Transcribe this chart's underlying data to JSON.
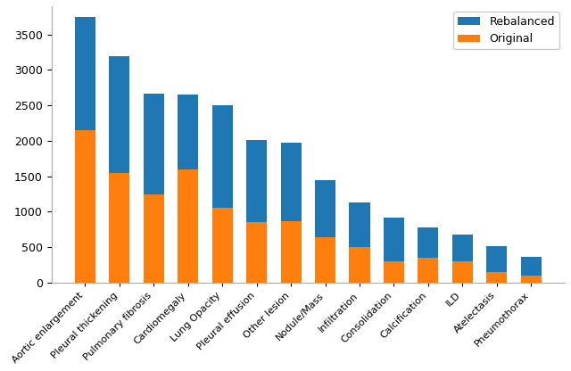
{
  "categories": [
    "Aortic enlargement",
    "Pleural thickening",
    "Pulmonary fibrosis",
    "Cardiomegaly",
    "Lung Opacity",
    "Pleural effusion",
    "Other lesion",
    "Nodule/Mass",
    "Infiltration",
    "Consolidation",
    "Calcification",
    "ILD",
    "Atelectasis",
    "Pneumothorax"
  ],
  "original_values": [
    2150,
    1550,
    1250,
    1600,
    1050,
    850,
    870,
    640,
    500,
    300,
    350,
    300,
    150,
    100
  ],
  "rebalanced_values": [
    1600,
    1650,
    1420,
    1050,
    1450,
    1160,
    1110,
    800,
    630,
    620,
    430,
    380,
    360,
    260
  ],
  "bar_color_original": "#ff7f0e",
  "bar_color_rebalanced": "#1f77b4",
  "legend_labels": [
    "Rebalanced",
    "Original"
  ],
  "ylim": [
    0,
    3900
  ],
  "yticks": [
    0,
    500,
    1000,
    1500,
    2000,
    2500,
    3000,
    3500
  ],
  "figsize": [
    6.4,
    4.16
  ],
  "dpi": 100,
  "bar_width": 0.6,
  "tick_fontsize": 9,
  "xlabel_fontsize": 8,
  "legend_fontsize": 9
}
